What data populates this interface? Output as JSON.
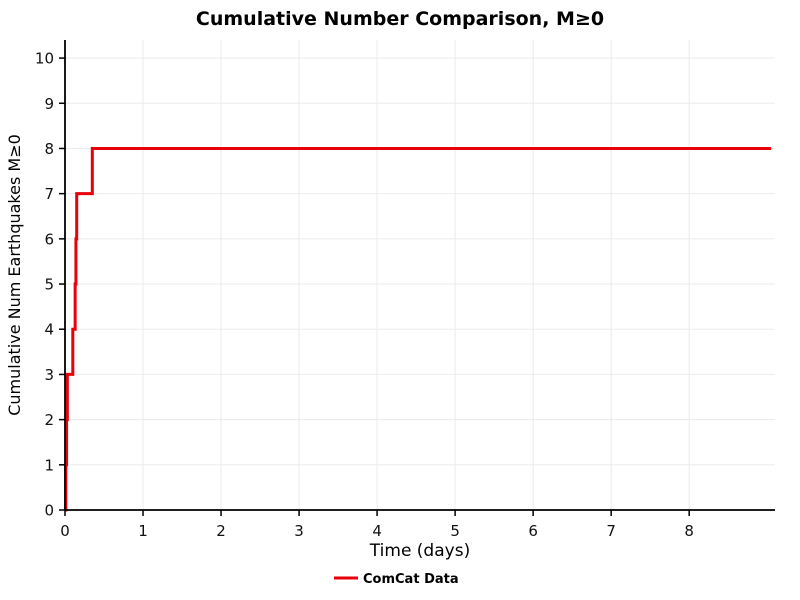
{
  "chart_data": {
    "type": "line",
    "title": "Cumulative Number Comparison, M≥0",
    "xlabel": "Time (days)",
    "ylabel": "Cumulative Num Earthquakes M≥0",
    "xlim": [
      0,
      9.1
    ],
    "ylim": [
      0,
      10.4
    ],
    "xticks": [
      0,
      1,
      2,
      3,
      4,
      5,
      6,
      7,
      8
    ],
    "yticks": [
      0,
      1,
      2,
      3,
      4,
      5,
      6,
      7,
      8,
      9,
      10
    ],
    "grid": true,
    "grid_color": "#ebebeb",
    "axis_color": "#000000",
    "series": [
      {
        "name": "ComCat Data",
        "color": "#e8000b",
        "line_width": 3,
        "step": "post",
        "points": [
          [
            0,
            0
          ],
          [
            0.01,
            1
          ],
          [
            0.02,
            2
          ],
          [
            0.03,
            3
          ],
          [
            0.1,
            4
          ],
          [
            0.13,
            5
          ],
          [
            0.14,
            6
          ],
          [
            0.15,
            7
          ],
          [
            0.35,
            8
          ],
          [
            9.05,
            8
          ]
        ]
      }
    ],
    "legend": {
      "position": "bottom-center",
      "entries": [
        {
          "label": "ComCat Data",
          "color": "#e8000b"
        }
      ]
    }
  }
}
